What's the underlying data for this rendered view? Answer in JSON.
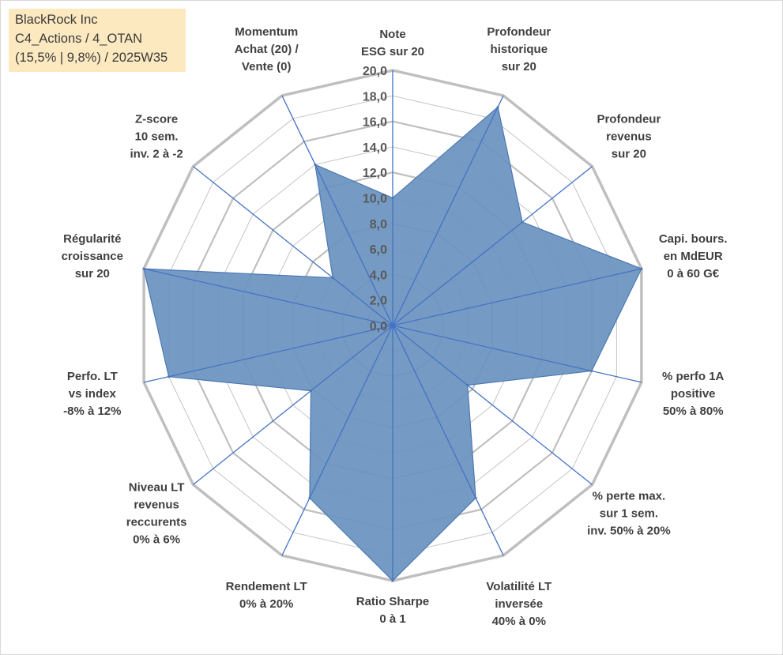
{
  "header": {
    "lines": [
      "BlackRock Inc",
      "C4_Actions / 4_OTAN",
      "(15,5% | 9,8%) / 2025W35"
    ]
  },
  "colors": {
    "fill": "#6b93c0",
    "stroke": "#4a78b4",
    "axis": "#4472c4",
    "grid": "#bfbfbf",
    "badge": "#fde9c0"
  },
  "chart_data": {
    "type": "radar",
    "title": "",
    "rmin": 0,
    "rmax": 20,
    "step": 2,
    "grid": true,
    "legend": "none",
    "tick_labels": [
      "0,0",
      "2,0",
      "4,0",
      "6,0",
      "8,0",
      "10,0",
      "12,0",
      "14,0",
      "16,0",
      "18,0",
      "20,0"
    ],
    "categories": [
      [
        "Note",
        "ESG sur 20"
      ],
      [
        "Profondeur",
        "historique",
        "sur 20"
      ],
      [
        "Profondeur",
        "revenus",
        "sur 20"
      ],
      [
        "Capi. bours.",
        "en MdEUR",
        "0 à 60 G€"
      ],
      [
        "% perfo 1A",
        "positive",
        "50% à 80%"
      ],
      [
        "% perte max.",
        "sur 1 sem.",
        "inv. 50% à 20%"
      ],
      [
        "Volatilité LT",
        "inversée",
        "40% à 0%"
      ],
      [
        "Ratio Sharpe",
        "0 à 1"
      ],
      [
        "Rendement LT",
        "0% à 20%"
      ],
      [
        "Niveau LT",
        "revenus",
        "reccurents",
        "0% à 6%"
      ],
      [
        "Perfo. LT",
        "vs index",
        "-8% à 12%"
      ],
      [
        "Régularité",
        "croissance",
        "sur 20"
      ],
      [
        "Z-score",
        "10 sem.",
        "inv. 2 à -2"
      ],
      [
        "Momentum",
        "Achat (20) /",
        "Vente (0)"
      ]
    ],
    "series": [
      {
        "values": [
          10,
          19,
          13,
          20,
          16,
          7.5,
          15,
          20,
          15,
          8.2,
          18,
          20,
          6,
          14
        ]
      }
    ]
  }
}
